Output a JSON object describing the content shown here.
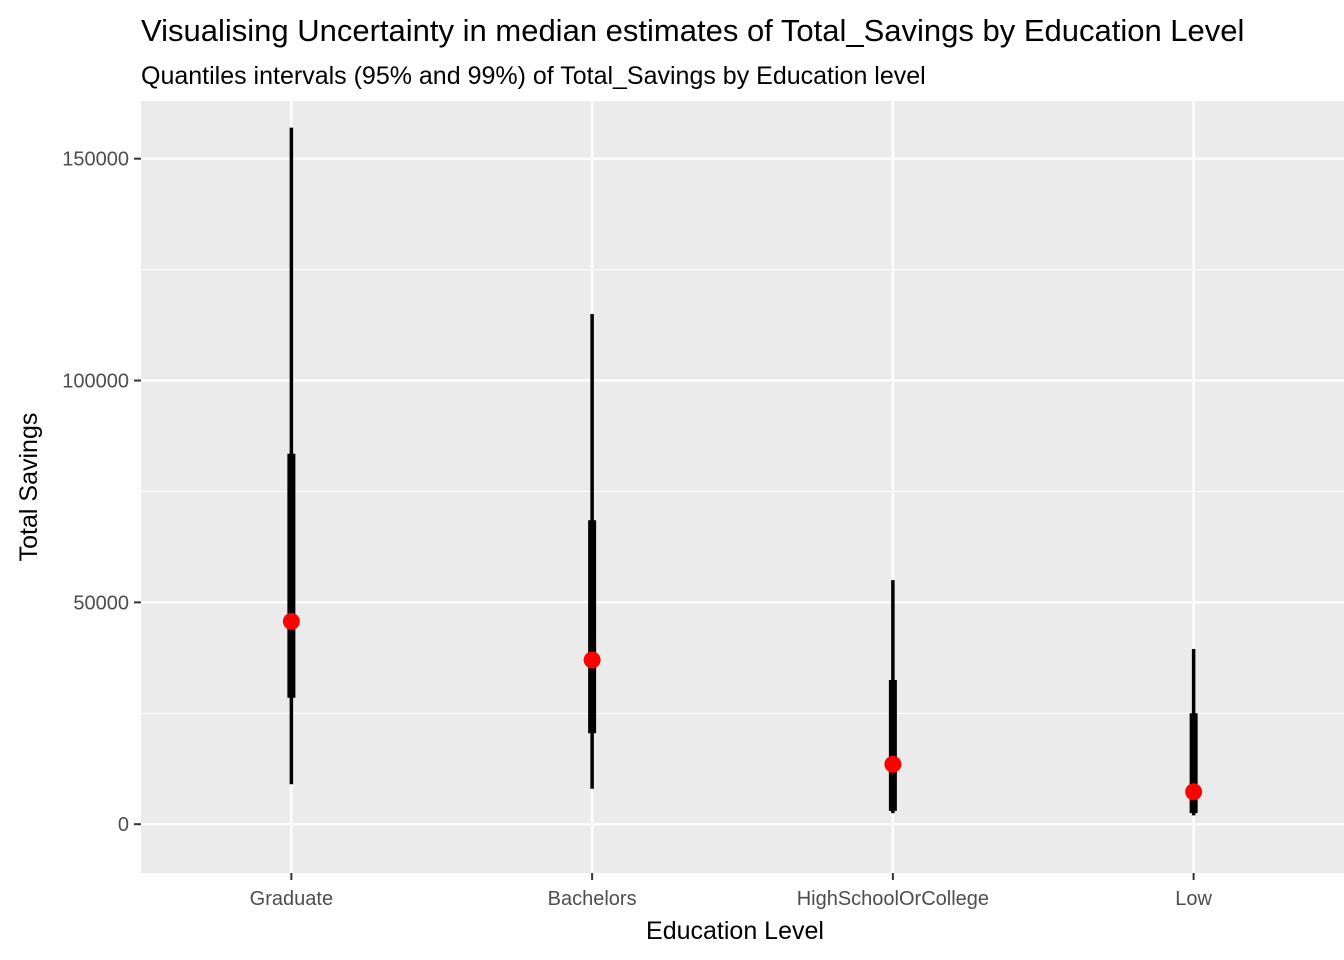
{
  "chart_data": {
    "type": "interval",
    "title": "Visualising Uncertainty in median estimates of Total_Savings by Education Level",
    "subtitle": "Quantiles intervals (95% and 99%) of Total_Savings by Education level",
    "xlabel": "Education Level",
    "ylabel": "Total Savings",
    "ylim": [
      -11000,
      163000
    ],
    "y_ticks": [
      0,
      50000,
      100000,
      150000
    ],
    "y_tick_labels": [
      "0",
      "50000",
      "100000",
      "150000"
    ],
    "y_minor_ticks": [
      25000,
      75000,
      125000
    ],
    "grid": true,
    "categories": [
      "Graduate",
      "Bachelors",
      "HighSchoolOrCollege",
      "Low"
    ],
    "intervals_99": [
      [
        9000,
        157000
      ],
      [
        8000,
        115000
      ],
      [
        2500,
        55000
      ],
      [
        2000,
        39500
      ]
    ],
    "intervals_95": [
      [
        28500,
        83500
      ],
      [
        20500,
        68500
      ],
      [
        3000,
        32500
      ],
      [
        2500,
        25000
      ]
    ],
    "median": [
      45700,
      37000,
      13500,
      7300
    ],
    "colors": {
      "panel": "#ebebeb",
      "grid": "#ffffff",
      "interval": "#000000",
      "median": "#ff0000"
    }
  }
}
